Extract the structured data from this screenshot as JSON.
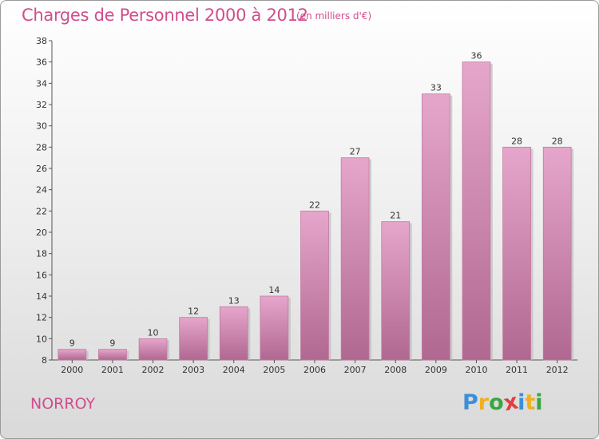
{
  "chart_data": {
    "type": "bar",
    "title": "Charges de Personnel 2000 à 2012",
    "subtitle": "(en milliers d'€)",
    "categories": [
      "2000",
      "2001",
      "2002",
      "2003",
      "2004",
      "2005",
      "2006",
      "2007",
      "2008",
      "2009",
      "2010",
      "2011",
      "2012"
    ],
    "values": [
      9,
      9,
      10,
      12,
      13,
      14,
      22,
      27,
      21,
      33,
      36,
      28,
      28
    ],
    "ylim": [
      8,
      38
    ],
    "yticks": [
      8,
      10,
      12,
      14,
      16,
      18,
      20,
      22,
      24,
      26,
      28,
      30,
      32,
      34,
      36,
      38
    ],
    "xlabel": "",
    "ylabel": "",
    "grid": false,
    "bar_color": "#c8789f"
  },
  "footer": {
    "commune": "NORROY",
    "logo_letters": [
      {
        "ch": "P",
        "color": "#3c8fd6"
      },
      {
        "ch": "r",
        "color": "#f0b020"
      },
      {
        "ch": "o",
        "color": "#3aa640"
      },
      {
        "ch": "x",
        "color": "#e04040"
      },
      {
        "ch": "i",
        "color": "#3c8fd6"
      },
      {
        "ch": "t",
        "color": "#f0b020"
      },
      {
        "ch": "i",
        "color": "#3aa640"
      }
    ]
  }
}
